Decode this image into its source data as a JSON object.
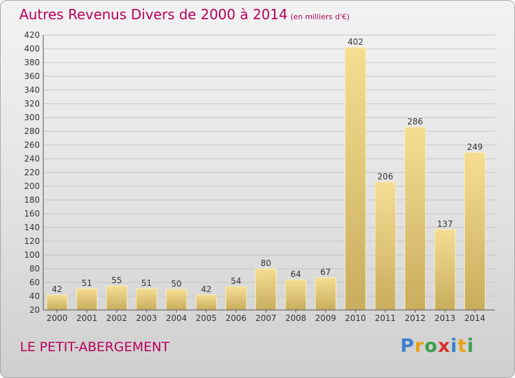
{
  "title": "Autres Revenus Divers de 2000 à 2014",
  "unit": "(en milliers d'€)",
  "commune": "LE PETIT-ABERGEMENT",
  "logo": {
    "letters": [
      "P",
      "r",
      "o",
      "x",
      "i",
      "t",
      "i"
    ],
    "colors": [
      "#3a7fd0",
      "#e8a21a",
      "#3aa04a",
      "#d9302c",
      "#3a7fd0",
      "#e8a21a",
      "#3aa04a"
    ]
  },
  "colors": {
    "title": "#b8005a",
    "bar_top": "#f5dd92",
    "bar_bottom": "#c9ad5e"
  },
  "chart_data": {
    "type": "bar",
    "categories": [
      "2000",
      "2001",
      "2002",
      "2003",
      "2004",
      "2005",
      "2006",
      "2007",
      "2008",
      "2009",
      "2010",
      "2011",
      "2012",
      "2013",
      "2014"
    ],
    "values": [
      42,
      51,
      55,
      51,
      50,
      42,
      54,
      80,
      64,
      67,
      402,
      206,
      286,
      137,
      249
    ],
    "ylim": [
      20,
      420
    ],
    "yticks": [
      20,
      40,
      60,
      80,
      100,
      120,
      140,
      160,
      180,
      200,
      220,
      240,
      260,
      280,
      300,
      320,
      340,
      360,
      380,
      400,
      420
    ],
    "grid": true
  }
}
